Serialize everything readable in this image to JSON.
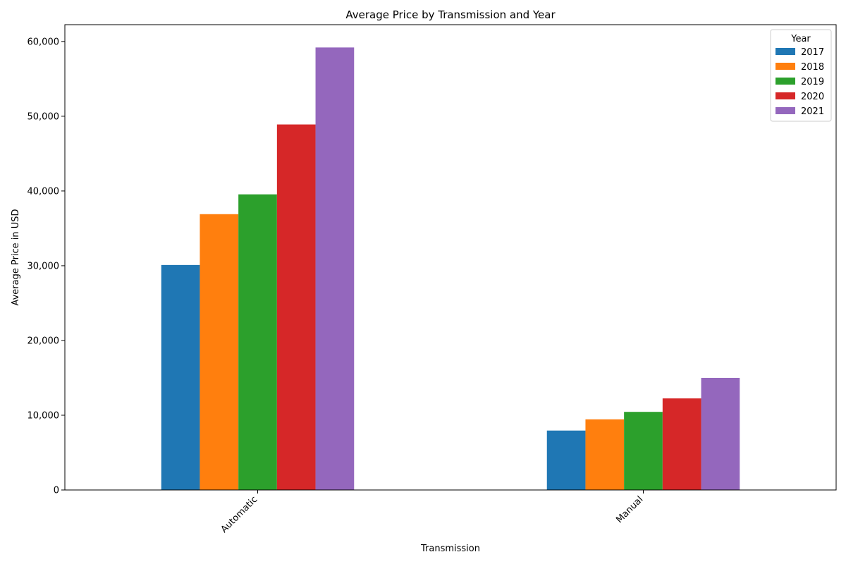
{
  "chart_data": {
    "type": "bar",
    "title": "Average Price by Transmission and Year",
    "xlabel": "Transmission",
    "ylabel": "Average Price in USD",
    "categories": [
      "Automatic",
      "Manual"
    ],
    "series": [
      {
        "name": "2017",
        "color": "#1f77b4",
        "values": [
          30100,
          7950
        ]
      },
      {
        "name": "2018",
        "color": "#ff7f0e",
        "values": [
          36900,
          9450
        ]
      },
      {
        "name": "2019",
        "color": "#2ca02c",
        "values": [
          39550,
          10450
        ]
      },
      {
        "name": "2020",
        "color": "#d62728",
        "values": [
          48900,
          12250
        ]
      },
      {
        "name": "2021",
        "color": "#9467bd",
        "values": [
          59200,
          15000
        ]
      }
    ],
    "ylim": [
      0,
      62250
    ],
    "yticks": [
      0,
      10000,
      20000,
      30000,
      40000,
      50000,
      60000
    ],
    "ytick_labels": [
      "0",
      "10,000",
      "20,000",
      "30,000",
      "40,000",
      "50,000",
      "60,000"
    ],
    "legend": {
      "title": "Year",
      "placement": "top-right"
    },
    "grid": false
  }
}
